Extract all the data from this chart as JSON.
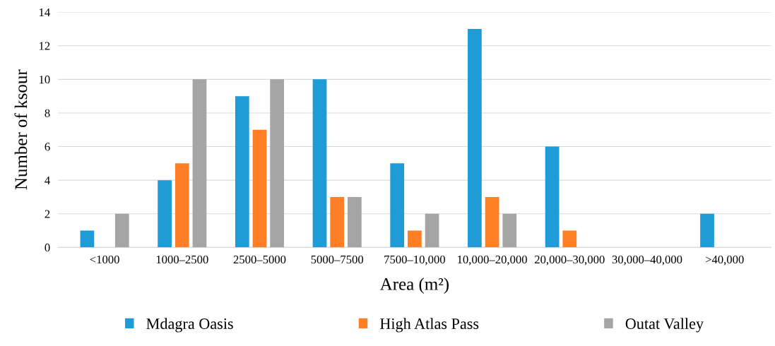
{
  "chart_data": {
    "type": "bar",
    "xlabel": "Area (m²)",
    "ylabel": "Number of ksour",
    "categories": [
      "<1000",
      "1000–2500",
      "2500–5000",
      "5000–7500",
      "7500–10,000",
      "10,000–20,000",
      "20,000–30,000",
      "30,000–40,000",
      ">40,000"
    ],
    "series": [
      {
        "name": "Mdagra Oasis",
        "color": "#1f9bd7",
        "values": [
          1,
          4,
          9,
          10,
          5,
          13,
          6,
          0,
          2
        ]
      },
      {
        "name": "High Atlas Pass",
        "color": "#ff7f27",
        "values": [
          0,
          5,
          7,
          3,
          1,
          3,
          1,
          0,
          0
        ]
      },
      {
        "name": "Outat Valley",
        "color": "#a5a5a5",
        "values": [
          2,
          10,
          10,
          3,
          2,
          2,
          0,
          0,
          0
        ]
      }
    ],
    "ylim": [
      0,
      14
    ],
    "yticks": [
      0,
      2,
      4,
      6,
      8,
      10,
      12,
      14
    ],
    "grid": "y",
    "legend": "bottom"
  }
}
